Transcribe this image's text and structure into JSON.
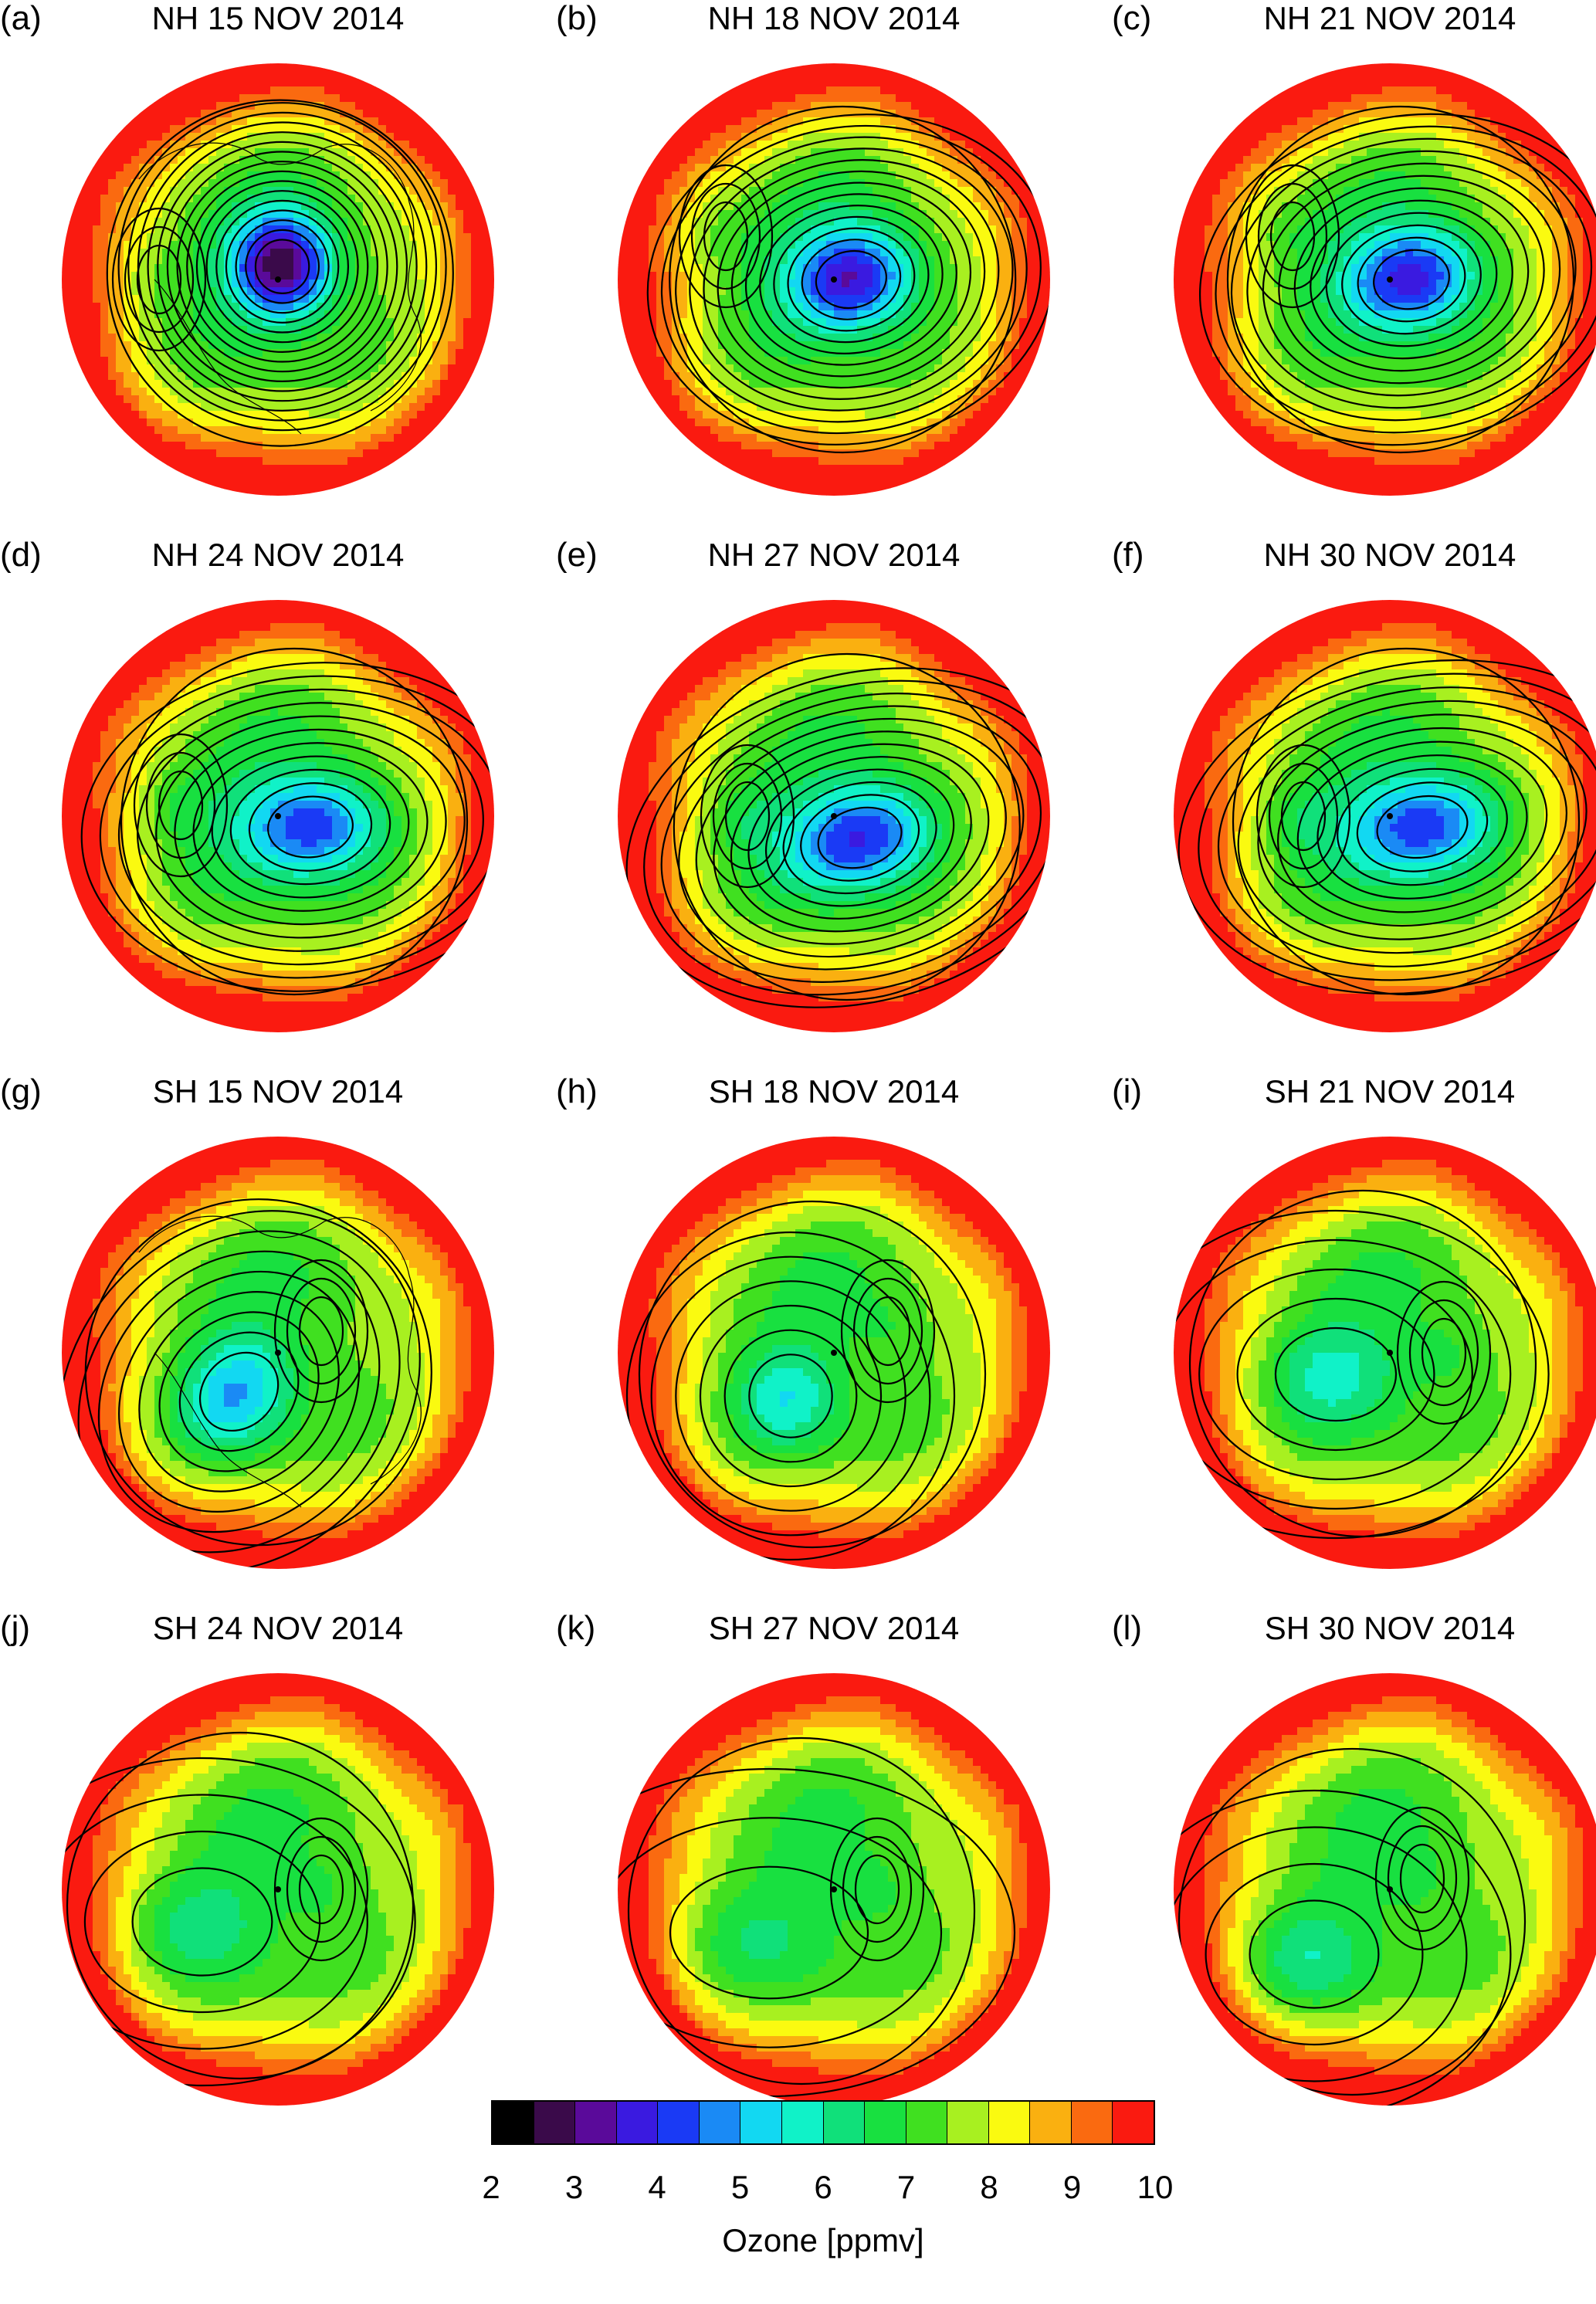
{
  "panels": [
    {
      "letter": "(a)",
      "title": "NH 15 NOV 2014",
      "vortex": {
        "dx": 0.02,
        "dy": -0.06,
        "elong": 1.0,
        "angle": 0,
        "min": 2.4
      },
      "outer_ring": 10.0,
      "side_low": {
        "dx": -0.55,
        "dy": 0.0,
        "min": 6.8
      },
      "coastlines": true
    },
    {
      "letter": "(b)",
      "title": "NH 18 NOV 2014",
      "vortex": {
        "dx": 0.08,
        "dy": 0.0,
        "elong": 1.25,
        "angle": 80,
        "min": 3.2
      },
      "outer_ring": 9.5,
      "side_low": {
        "dx": -0.5,
        "dy": -0.2,
        "min": 6.6
      },
      "coastlines": false
    },
    {
      "letter": "(c)",
      "title": "NH 21 NOV 2014",
      "vortex": {
        "dx": 0.1,
        "dy": 0.0,
        "elong": 1.3,
        "angle": 80,
        "min": 3.4
      },
      "outer_ring": 9.5,
      "side_low": {
        "dx": -0.45,
        "dy": -0.2,
        "min": 6.5
      },
      "coastlines": false
    },
    {
      "letter": "(d)",
      "title": "NH 24 NOV 2014",
      "vortex": {
        "dx": 0.15,
        "dy": 0.05,
        "elong": 1.4,
        "angle": 85,
        "min": 3.8
      },
      "outer_ring": 9.2,
      "side_low": {
        "dx": -0.45,
        "dy": -0.05,
        "min": 6.2
      },
      "coastlines": false
    },
    {
      "letter": "(e)",
      "title": "NH 27 NOV 2014",
      "vortex": {
        "dx": 0.12,
        "dy": 0.1,
        "elong": 1.45,
        "angle": 75,
        "min": 3.6
      },
      "outer_ring": 9.2,
      "side_low": {
        "dx": -0.4,
        "dy": 0.0,
        "min": 6.0
      },
      "coastlines": false
    },
    {
      "letter": "(f)",
      "title": "NH 30 NOV 2014",
      "vortex": {
        "dx": 0.15,
        "dy": 0.05,
        "elong": 1.5,
        "angle": 80,
        "min": 3.8
      },
      "outer_ring": 9.3,
      "side_low": {
        "dx": -0.4,
        "dy": 0.0,
        "min": 6.0
      },
      "coastlines": false
    },
    {
      "letter": "(g)",
      "title": "SH 15 NOV 2014",
      "vortex": {
        "dx": -0.18,
        "dy": 0.18,
        "elong": 1.2,
        "angle": 45,
        "min": 5.0
      },
      "outer_ring": 10.0,
      "side_low": {
        "dx": 0.2,
        "dy": -0.1,
        "min": 7.2
      },
      "coastlines": true
    },
    {
      "letter": "(h)",
      "title": "SH 18 NOV 2014",
      "vortex": {
        "dx": -0.2,
        "dy": 0.2,
        "elong": 1.0,
        "angle": 0,
        "min": 5.6
      },
      "outer_ring": 10.0,
      "side_low": {
        "dx": 0.25,
        "dy": -0.1,
        "min": 6.2
      },
      "coastlines": false
    },
    {
      "letter": "(i)",
      "title": "SH 21 NOV 2014",
      "vortex": {
        "dx": -0.25,
        "dy": 0.1,
        "elong": 1.3,
        "angle": 90,
        "min": 5.8
      },
      "outer_ring": 10.0,
      "side_low": {
        "dx": 0.25,
        "dy": 0.0,
        "min": 6.0
      },
      "coastlines": false
    },
    {
      "letter": "(j)",
      "title": "SH 24 NOV 2014",
      "vortex": {
        "dx": -0.35,
        "dy": 0.15,
        "elong": 1.3,
        "angle": 90,
        "min": 6.3
      },
      "outer_ring": 9.8,
      "side_low": {
        "dx": 0.2,
        "dy": 0.0,
        "min": 6.0
      },
      "coastlines": false
    },
    {
      "letter": "(k)",
      "title": "SH 27 NOV 2014",
      "vortex": {
        "dx": -0.3,
        "dy": 0.2,
        "elong": 1.5,
        "angle": 90,
        "min": 6.6
      },
      "outer_ring": 9.8,
      "side_low": {
        "dx": 0.2,
        "dy": 0.0,
        "min": 5.9
      },
      "coastlines": false
    },
    {
      "letter": "(l)",
      "title": "SH 30 NOV 2014",
      "vortex": {
        "dx": -0.35,
        "dy": 0.3,
        "elong": 1.2,
        "angle": 90,
        "min": 6.3
      },
      "outer_ring": 9.6,
      "side_low": {
        "dx": 0.15,
        "dy": -0.05,
        "min": 6.0
      },
      "coastlines": false
    }
  ],
  "colorbar": {
    "colors": [
      "#000000",
      "#3a0a4a",
      "#5a0a9a",
      "#3a1ae0",
      "#1a3af5",
      "#1a8af5",
      "#12d8f2",
      "#10f2c8",
      "#10e07a",
      "#18e040",
      "#40e020",
      "#a8f020",
      "#fafa10",
      "#fab010",
      "#fa6a10",
      "#fa1a10"
    ],
    "min": 2,
    "max": 10,
    "ticks": [
      "2",
      "3",
      "4",
      "5",
      "6",
      "7",
      "8",
      "9",
      "10"
    ],
    "label": "Ozone [ppmv]"
  }
}
